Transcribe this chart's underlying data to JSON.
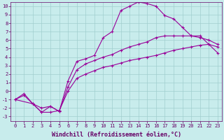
{
  "bg_color": "#c8ecec",
  "grid_color": "#a0cece",
  "line_color": "#990099",
  "xlabel": "Windchill (Refroidissement éolien,°C)",
  "xlim": [
    -0.5,
    23.5
  ],
  "ylim": [
    -3.5,
    10.5
  ],
  "xticks": [
    0,
    1,
    2,
    3,
    4,
    5,
    6,
    7,
    8,
    9,
    10,
    11,
    12,
    13,
    14,
    15,
    16,
    17,
    18,
    19,
    20,
    21,
    22,
    23
  ],
  "yticks": [
    -3,
    -2,
    -1,
    0,
    1,
    2,
    3,
    4,
    5,
    6,
    7,
    8,
    9,
    10
  ],
  "curve_upper_x": [
    0,
    2,
    3,
    4,
    5,
    6,
    7,
    8,
    9,
    10,
    11,
    12,
    13,
    14,
    15,
    16,
    17,
    18,
    19,
    20,
    21,
    22,
    23
  ],
  "curve_upper_y": [
    -1.0,
    -1.5,
    -2.5,
    -1.8,
    -2.4,
    1.2,
    3.5,
    3.8,
    4.2,
    6.3,
    7.0,
    9.5,
    10.0,
    10.5,
    10.3,
    10.0,
    8.9,
    8.5,
    7.5,
    6.5,
    6.5,
    5.5,
    5.2
  ],
  "curve_mid_x": [
    0,
    1,
    2,
    3,
    4,
    5,
    6,
    7,
    8,
    9,
    10,
    11,
    12,
    13,
    14,
    15,
    16,
    17,
    18,
    19,
    20,
    21,
    22,
    23
  ],
  "curve_mid_y": [
    -1.0,
    -0.5,
    -1.5,
    -2.0,
    -1.8,
    -2.4,
    0.5,
    2.5,
    3.2,
    3.6,
    4.0,
    4.3,
    4.8,
    5.2,
    5.5,
    5.8,
    6.3,
    6.5,
    6.5,
    6.5,
    6.5,
    6.3,
    6.0,
    5.5
  ],
  "curve_low_x": [
    0,
    1,
    2,
    3,
    4,
    5,
    6,
    7,
    8,
    9,
    10,
    11,
    12,
    13,
    14,
    15,
    16,
    17,
    18,
    19,
    20,
    21,
    22,
    23
  ],
  "curve_low_y": [
    -1.0,
    -0.3,
    -1.5,
    -2.5,
    -2.5,
    -2.3,
    0.0,
    1.5,
    2.0,
    2.4,
    2.8,
    3.0,
    3.3,
    3.6,
    3.8,
    4.0,
    4.2,
    4.5,
    4.8,
    5.0,
    5.2,
    5.4,
    5.5,
    4.5
  ],
  "font_color": "#660066",
  "font_name": "monospace",
  "tick_fontsize": 5.0,
  "label_fontsize": 6.0
}
